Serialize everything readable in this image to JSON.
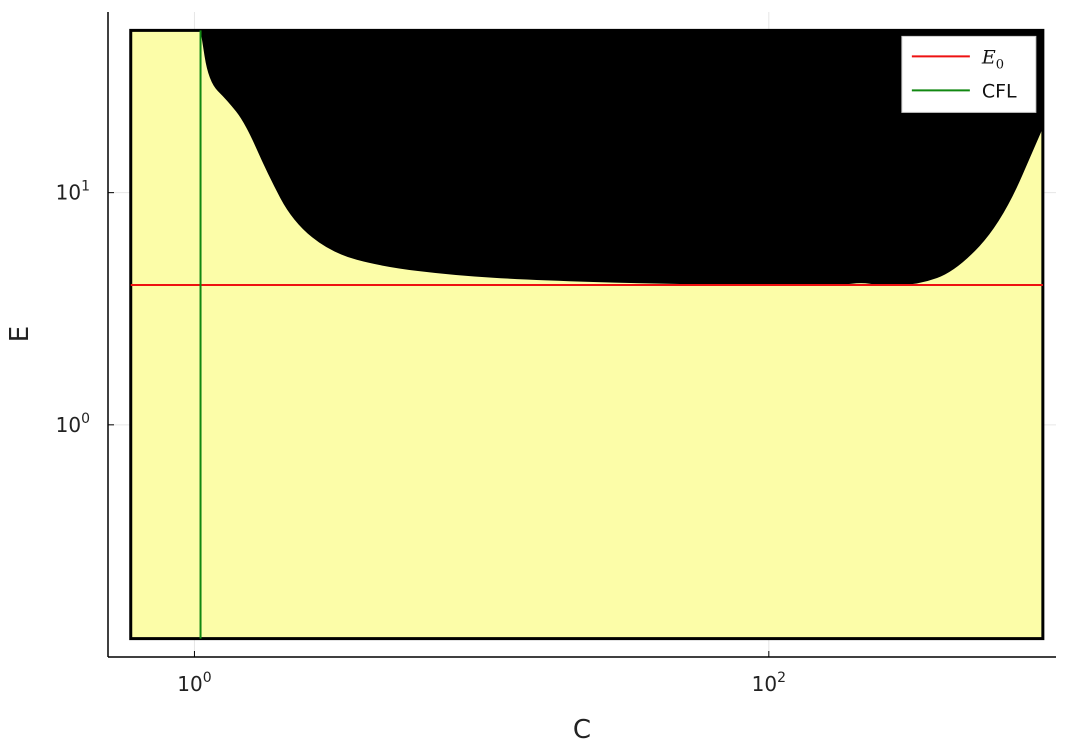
{
  "chart_data": {
    "type": "area",
    "xlabel": "C",
    "ylabel": "E",
    "x_scale": "log10",
    "y_scale": "log10",
    "xlim": [
      0.5,
      1000
    ],
    "ylim": [
      0.1,
      60
    ],
    "x_ticks": [
      {
        "value": 1,
        "base": "10",
        "exp": "0"
      },
      {
        "value": 100,
        "base": "10",
        "exp": "2"
      }
    ],
    "y_ticks": [
      {
        "value": 1,
        "base": "10",
        "exp": "0"
      },
      {
        "value": 10,
        "base": "10",
        "exp": "1"
      }
    ],
    "grid": true,
    "legend_position": "top-right",
    "region": {
      "x_range": [
        0.6,
        900
      ],
      "y_range": [
        0.12,
        50
      ],
      "feasible_color": "#fcfda8",
      "infeasible_color": "#000000",
      "infeasible_lower_boundary": [
        {
          "x": 1.05,
          "y": 50
        },
        {
          "x": 1.12,
          "y": 30
        },
        {
          "x": 1.3,
          "y": 25
        },
        {
          "x": 1.5,
          "y": 20
        },
        {
          "x": 1.8,
          "y": 12
        },
        {
          "x": 2.2,
          "y": 7.5
        },
        {
          "x": 3.0,
          "y": 5.5
        },
        {
          "x": 4.5,
          "y": 4.8
        },
        {
          "x": 8,
          "y": 4.4
        },
        {
          "x": 15,
          "y": 4.2
        },
        {
          "x": 40,
          "y": 4.05
        },
        {
          "x": 100,
          "y": 4.0
        },
        {
          "x": 180,
          "y": 4.0
        },
        {
          "x": 210,
          "y": 4.1
        },
        {
          "x": 240,
          "y": 4.0
        },
        {
          "x": 330,
          "y": 4.0
        },
        {
          "x": 450,
          "y": 4.6
        },
        {
          "x": 650,
          "y": 7.5
        },
        {
          "x": 900,
          "y": 19
        }
      ]
    },
    "series": [
      {
        "name": "E_0",
        "legend_base": "E",
        "legend_sub": "0",
        "kind": "hline",
        "y": 4,
        "color": "#ee1111"
      },
      {
        "name": "CFL",
        "legend_base": "CFL",
        "legend_sub": "",
        "kind": "vline",
        "x": 1.05,
        "color": "#118811"
      }
    ]
  }
}
